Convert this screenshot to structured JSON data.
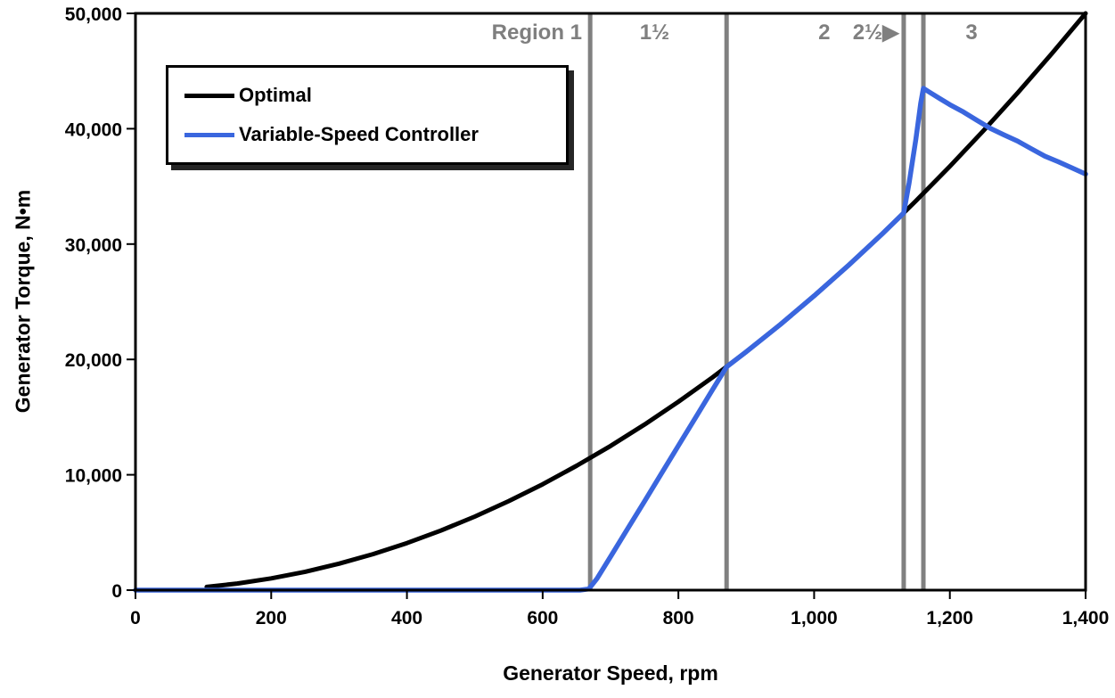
{
  "chart_data": {
    "type": "line",
    "title": "",
    "xlabel": "Generator Speed, rpm",
    "ylabel": "Generator Torque, N•m",
    "xlim": [
      0,
      1400
    ],
    "ylim": [
      0,
      50000
    ],
    "grid": false,
    "xticks": [
      0,
      200,
      400,
      600,
      800,
      1000,
      1200,
      1400
    ],
    "xtick_labels": [
      "0",
      "200",
      "400",
      "600",
      "800",
      "1,000",
      "1,200",
      "1,400"
    ],
    "yticks": [
      0,
      10000,
      20000,
      30000,
      40000,
      50000
    ],
    "ytick_labels": [
      "0",
      "10,000",
      "20,000",
      "30,000",
      "40,000",
      "50,000"
    ],
    "legend": {
      "position": "top-left",
      "entries": [
        "Optimal",
        "Variable-Speed Controller"
      ]
    },
    "colors": {
      "optimal": "#000000",
      "controller": "#3A66DE",
      "boundary_line": "#808080",
      "region_label": "#7F7F7F",
      "axis": "#000000"
    },
    "region_boundaries_rpm": [
      670,
      871,
      1132,
      1161
    ],
    "region_labels": [
      {
        "text": "Region 1",
        "x": 658,
        "anchor": "end"
      },
      {
        "text": "1½",
        "x": 765,
        "anchor": "middle"
      },
      {
        "text": "2",
        "x": 1015,
        "anchor": "middle"
      },
      {
        "text": "2½▶",
        "x": 1125,
        "anchor": "end"
      },
      {
        "text": "3",
        "x": 1232,
        "anchor": "middle"
      }
    ],
    "series": [
      {
        "name": "Optimal",
        "color": "#000000",
        "width": 5,
        "points": [
          [
            105,
            281
          ],
          [
            150,
            574
          ],
          [
            200,
            1020
          ],
          [
            250,
            1594
          ],
          [
            300,
            2296
          ],
          [
            350,
            3125
          ],
          [
            400,
            4082
          ],
          [
            450,
            5166
          ],
          [
            500,
            6378
          ],
          [
            550,
            7717
          ],
          [
            600,
            9184
          ],
          [
            650,
            10778
          ],
          [
            700,
            12500
          ],
          [
            750,
            14349
          ],
          [
            800,
            16327
          ],
          [
            850,
            18431
          ],
          [
            900,
            20663
          ],
          [
            950,
            23023
          ],
          [
            1000,
            25510
          ],
          [
            1050,
            28125
          ],
          [
            1100,
            30867
          ],
          [
            1150,
            33737
          ],
          [
            1200,
            36735
          ],
          [
            1250,
            39860
          ],
          [
            1300,
            43112
          ],
          [
            1350,
            46492
          ],
          [
            1400,
            50000
          ]
        ]
      },
      {
        "name": "Variable-Speed Controller",
        "color": "#3A66DE",
        "width": 5.5,
        "points": [
          [
            0,
            0
          ],
          [
            100,
            0
          ],
          [
            200,
            0
          ],
          [
            300,
            0
          ],
          [
            400,
            0
          ],
          [
            500,
            0
          ],
          [
            600,
            0
          ],
          [
            655,
            0
          ],
          [
            668,
            100
          ],
          [
            680,
            1000
          ],
          [
            700,
            2900
          ],
          [
            725,
            5300
          ],
          [
            750,
            7700
          ],
          [
            775,
            10110
          ],
          [
            800,
            12520
          ],
          [
            825,
            14930
          ],
          [
            850,
            17340
          ],
          [
            871,
            19352
          ],
          [
            900,
            20663
          ],
          [
            950,
            23023
          ],
          [
            1000,
            25510
          ],
          [
            1050,
            28125
          ],
          [
            1100,
            30867
          ],
          [
            1132,
            32690
          ],
          [
            1140,
            35300
          ],
          [
            1150,
            39100
          ],
          [
            1157,
            42200
          ],
          [
            1161,
            43500
          ],
          [
            1170,
            43165
          ],
          [
            1185,
            42620
          ],
          [
            1200,
            42086
          ],
          [
            1220,
            41450
          ],
          [
            1240,
            40730
          ],
          [
            1260,
            40020
          ],
          [
            1280,
            39456
          ],
          [
            1300,
            38920
          ],
          [
            1320,
            38260
          ],
          [
            1340,
            37620
          ],
          [
            1360,
            37135
          ],
          [
            1380,
            36597
          ],
          [
            1400,
            36074
          ]
        ]
      }
    ]
  }
}
